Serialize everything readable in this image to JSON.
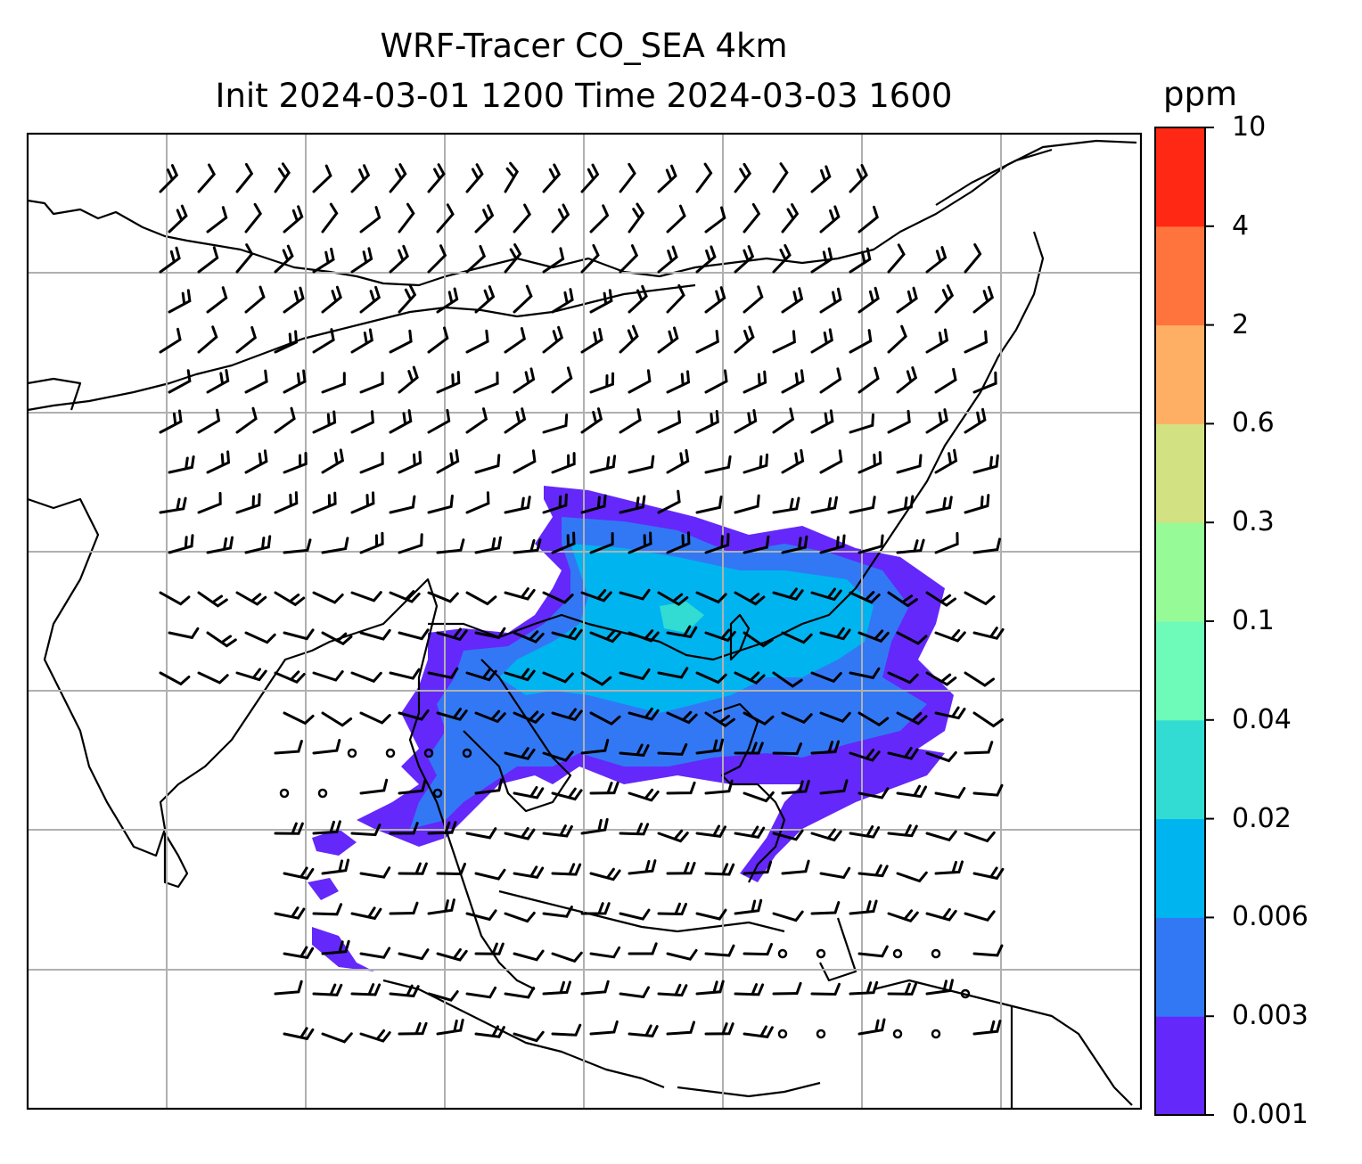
{
  "title": {
    "line1": "WRF-Tracer CO_SEA 4km",
    "line2": "Init 2024-03-01 1200 Time 2024-03-03 1600"
  },
  "colorbar": {
    "unit": "ppm",
    "levels": [
      "0.001",
      "0.003",
      "0.006",
      "0.02",
      "0.04",
      "0.1",
      "0.3",
      "0.6",
      "2",
      "4",
      "10"
    ],
    "colors": [
      "#6428fa",
      "#3278f5",
      "#00b4f0",
      "#32dcd2",
      "#6efab9",
      "#96fa96",
      "#d2e182",
      "#ffaf64",
      "#ff733c",
      "#ff2814"
    ]
  },
  "map": {
    "gridlines": "on",
    "gridline_color": "#b0b0b0",
    "coastline_color": "#000000",
    "wind_barb_color": "#000000",
    "background": "#ffffff"
  }
}
